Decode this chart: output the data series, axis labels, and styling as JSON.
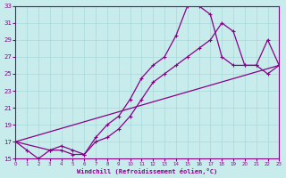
{
  "xlabel": "Windchill (Refroidissement éolien,°C)",
  "bg_color": "#c8ecec",
  "grid_color": "#a8d8d8",
  "line_color": "#880088",
  "xlim": [
    0,
    23
  ],
  "ylim": [
    15,
    33
  ],
  "xticks": [
    0,
    1,
    2,
    3,
    4,
    5,
    6,
    7,
    8,
    9,
    10,
    11,
    12,
    13,
    14,
    15,
    16,
    17,
    18,
    19,
    20,
    21,
    22,
    23
  ],
  "yticks": [
    15,
    17,
    19,
    21,
    23,
    25,
    27,
    29,
    31,
    33
  ],
  "line1_x": [
    0,
    1,
    2,
    3,
    4,
    5,
    6,
    7,
    8,
    9,
    10,
    11,
    12,
    13,
    14,
    15,
    16,
    17,
    18,
    19,
    20,
    21,
    22,
    23
  ],
  "line1_y": [
    17,
    16,
    15,
    16,
    16,
    15.5,
    15.5,
    17.5,
    19,
    20,
    22,
    24.5,
    26,
    27,
    29.5,
    33,
    33,
    32,
    27,
    26,
    26,
    26,
    29,
    26
  ],
  "line2_x": [
    0,
    3,
    4,
    5,
    6,
    7,
    8,
    9,
    10,
    11,
    12,
    13,
    14,
    15,
    16,
    17,
    18,
    19,
    20,
    21,
    22,
    23
  ],
  "line2_y": [
    17,
    16,
    16.5,
    16,
    15.5,
    17,
    17.5,
    18.5,
    20,
    22,
    24,
    25,
    26,
    27,
    28,
    29,
    31,
    30,
    26,
    26,
    25,
    26
  ],
  "line3_x": [
    0,
    23
  ],
  "line3_y": [
    17,
    26
  ]
}
